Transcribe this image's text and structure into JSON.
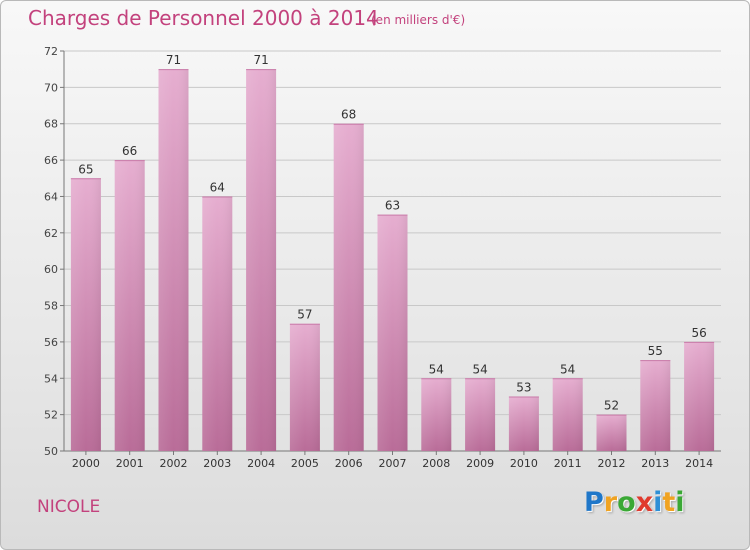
{
  "header": {
    "title": "Charges de Personnel 2000 à 2014",
    "unit_note": "(en milliers d'€)"
  },
  "commune": "NICOLE",
  "logo": {
    "letters": [
      {
        "char": "P",
        "color": "#1f77c9"
      },
      {
        "char": "r",
        "color": "#f0a322"
      },
      {
        "char": "o",
        "color": "#3aa835"
      },
      {
        "char": "x",
        "color": "#e03a2e"
      },
      {
        "char": "i",
        "color": "#2d8fd6"
      },
      {
        "char": "t",
        "color": "#f0a322"
      },
      {
        "char": "i",
        "color": "#3aa835"
      }
    ]
  },
  "chart_data": {
    "type": "bar",
    "categories": [
      "2000",
      "2001",
      "2002",
      "2003",
      "2004",
      "2005",
      "2006",
      "2007",
      "2008",
      "2009",
      "2010",
      "2011",
      "2012",
      "2013",
      "2014"
    ],
    "values": [
      65,
      66,
      71,
      64,
      71,
      57,
      68,
      63,
      54,
      54,
      53,
      54,
      52,
      55,
      56
    ],
    "ylim": [
      50,
      72
    ],
    "yticks": [
      50,
      52,
      54,
      56,
      58,
      60,
      62,
      64,
      66,
      68,
      70,
      72
    ],
    "grid": true,
    "bar_color": "#d487b4",
    "grid_color": "#c8c8c8"
  }
}
